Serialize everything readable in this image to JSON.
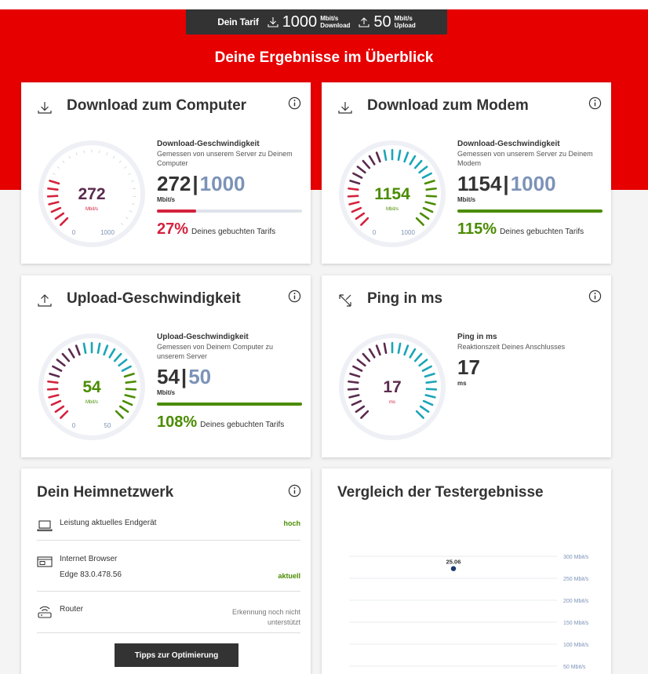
{
  "tarif": {
    "label": "Dein Tarif",
    "download_value": "1000",
    "download_unit_1": "Mbit/s",
    "download_unit_2": "Download",
    "upload_value": "50",
    "upload_unit_1": "Mbit/s",
    "upload_unit_2": "Upload"
  },
  "headline": "Deine Ergebnisse im Überblick",
  "cards": {
    "dl_computer": {
      "title": "Download zum Computer",
      "icon": "download-icon",
      "gauge_value": "272",
      "gauge_unit": "Mbit/s",
      "gauge_min": "0",
      "gauge_max": "1000",
      "stat_heading": "Download-Geschwindigkeit",
      "stat_sub": "Gemessen von unserem Server zu Deinem Computer",
      "measured": "272",
      "separator": "|",
      "tariff": "1000",
      "unit": "Mbit/s",
      "percent": "27%",
      "percent_text": "Deines gebuchten Tarifs",
      "fraction": 0.27,
      "color": "#d4213d"
    },
    "dl_modem": {
      "title": "Download zum Modem",
      "icon": "download-icon",
      "gauge_value": "1154",
      "gauge_unit": "Mbit/s",
      "gauge_min": "0",
      "gauge_max": "1000",
      "stat_heading": "Download-Geschwindigkeit",
      "stat_sub": "Gemessen von unserem Server zu Deinem Modem",
      "measured": "1154",
      "separator": "|",
      "tariff": "1000",
      "unit": "Mbit/s",
      "percent": "115%",
      "percent_text": "Deines gebuchten Tarifs",
      "fraction": 1.15,
      "color": "#4a8c00"
    },
    "upload": {
      "title": "Upload-Geschwindigkeit",
      "icon": "upload-icon",
      "gauge_value": "54",
      "gauge_unit": "Mbit/s",
      "gauge_min": "0",
      "gauge_max": "50",
      "stat_heading": "Upload-Geschwindigkeit",
      "stat_sub": "Gemessen von Deinem Computer zu unserem Server",
      "measured": "54",
      "separator": "|",
      "tariff": "50",
      "unit": "Mbit/s",
      "percent": "108%",
      "percent_text": "Deines gebuchten Tarifs",
      "fraction": 1.08,
      "color": "#4a8c00"
    },
    "ping": {
      "title": "Ping in ms",
      "icon": "ping-arrows-icon",
      "gauge_value": "17",
      "gauge_unit": "ms",
      "stat_heading": "Ping in ms",
      "stat_sub": "Reaktionszeit Deines Anschlusses",
      "measured": "17",
      "unit": "ms",
      "color": "#5b2a4e"
    }
  },
  "heimnetz": {
    "title": "Dein Heimnetzwerk",
    "rows": [
      {
        "icon": "laptop-icon",
        "label": "Leistung aktuelles Endgerät",
        "value": "hoch"
      },
      {
        "icon": "browser-icon",
        "label": "Internet Browser",
        "sublabel": "Edge 83.0.478.56",
        "value": "aktuell"
      },
      {
        "icon": "router-icon",
        "label": "Router",
        "value_line1": "Erkennung noch nicht",
        "value_line2": "unterstützt"
      }
    ],
    "button": "Tipps zur Optimierung"
  },
  "vergleich": {
    "title": "Vergleich der Testergebnisse"
  },
  "chart_data": {
    "type": "scatter",
    "title": "Vergleich der Testergebnisse",
    "y_tick_labels": [
      "300 Mbit/s",
      "250 Mbit/s",
      "200 Mbit/s",
      "150 Mbit/s",
      "100 Mbit/s",
      "50 Mbit/s"
    ],
    "y_ticks": [
      300,
      250,
      200,
      150,
      100,
      50
    ],
    "ylim": [
      50,
      300
    ],
    "points": [
      {
        "x": "25.06",
        "y": 272
      }
    ],
    "grid": true
  },
  "colors": {
    "brand_red": "#e60000",
    "dark": "#333333",
    "tariff_blue": "#7c93b8",
    "good_green": "#4a8c00",
    "bad_red": "#d4213d",
    "plum": "#5b2a4e",
    "teal": "#1aa5b8"
  }
}
